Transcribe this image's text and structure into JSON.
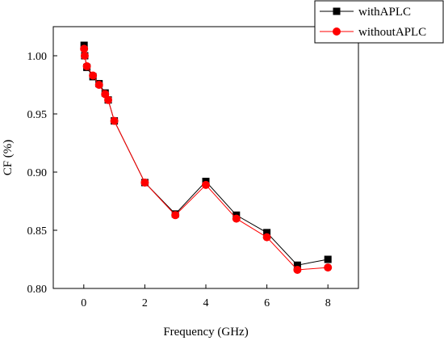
{
  "chart_data": {
    "type": "line",
    "title": "",
    "xlabel": "Frequency (GHz)",
    "ylabel": "CF (%)",
    "xlim": [
      -1,
      9
    ],
    "ylim": [
      0.8,
      1.025
    ],
    "x_ticks": [
      0,
      2,
      4,
      6,
      8
    ],
    "y_ticks": [
      0.8,
      0.85,
      0.9,
      0.95,
      1.0
    ],
    "x_tick_labels": [
      "0",
      "2",
      "4",
      "6",
      "8"
    ],
    "y_tick_labels": [
      "0.80",
      "0.85",
      "0.90",
      "0.95",
      "1.00"
    ],
    "grid": false,
    "legend_position": "top-right",
    "series": [
      {
        "name": "withAPLC",
        "color": "#000000",
        "marker": "square",
        "x": [
          0.01,
          0.03,
          0.1,
          0.3,
          0.5,
          0.7,
          0.8,
          1,
          2,
          3,
          4,
          5,
          6,
          7,
          8
        ],
        "y": [
          1.009,
          1.0,
          0.99,
          0.982,
          0.976,
          0.968,
          0.962,
          0.944,
          0.891,
          0.864,
          0.892,
          0.863,
          0.848,
          0.82,
          0.825
        ]
      },
      {
        "name": "withoutAPLC",
        "color": "#ff0000",
        "marker": "circle",
        "x": [
          0.01,
          0.03,
          0.1,
          0.3,
          0.5,
          0.7,
          0.8,
          1,
          2,
          3,
          4,
          5,
          6,
          7,
          8
        ],
        "y": [
          1.006,
          1.0,
          0.991,
          0.983,
          0.975,
          0.967,
          0.962,
          0.944,
          0.891,
          0.863,
          0.889,
          0.86,
          0.844,
          0.816,
          0.818
        ]
      }
    ]
  }
}
